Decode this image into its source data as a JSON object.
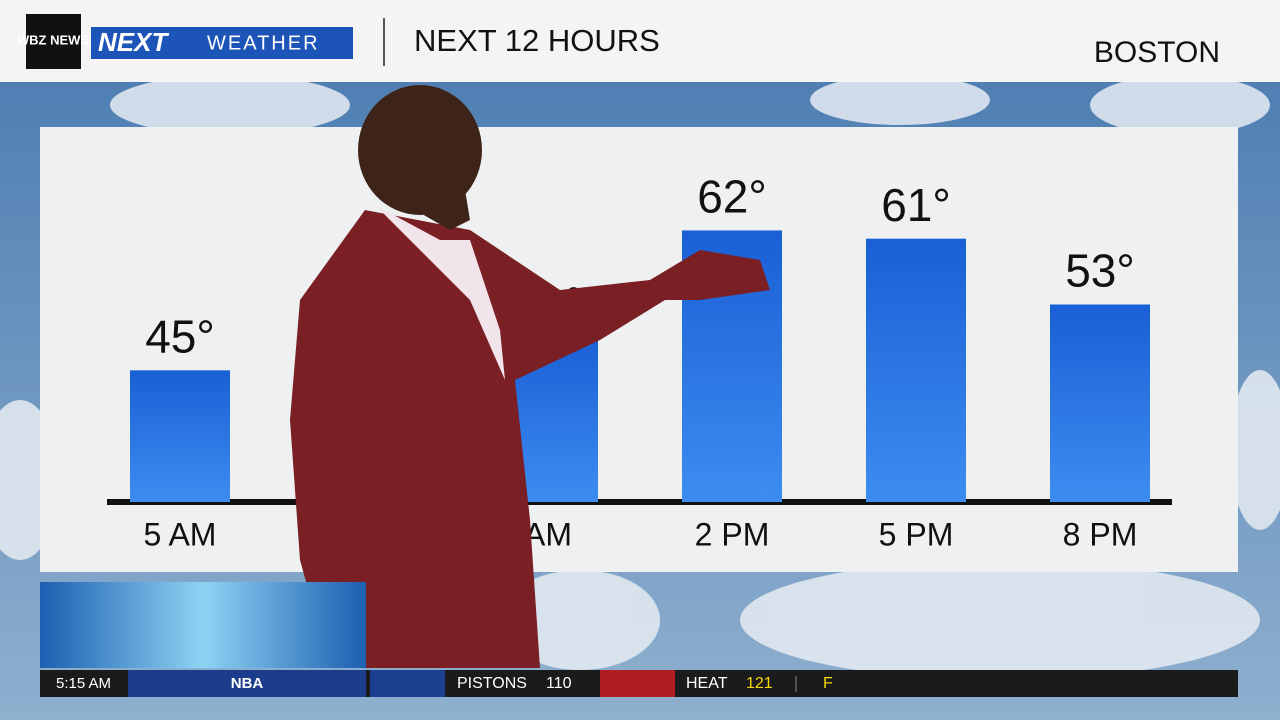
{
  "header": {
    "station": "WBZ NEWS",
    "brand": "NEXT",
    "segment": "WEATHER",
    "location": "BOSTON"
  },
  "chart_data": {
    "type": "bar",
    "title": "NEXT 12 HOURS",
    "categories": [
      "5 AM",
      null,
      "AM",
      "2 PM",
      "5 PM",
      "8 PM"
    ],
    "values": [
      45,
      null,
      49,
      62,
      61,
      53
    ],
    "value_labels": [
      "45°",
      null,
      "49°",
      "62°",
      "61°",
      "53°"
    ],
    "color": "#1f6fe0",
    "ylim": [
      29,
      64
    ]
  },
  "ticker": {
    "time": "5:15 AM",
    "league": "NBA",
    "team1": "PISTONS",
    "score1": "110",
    "team2": "HEAT",
    "score2": "121",
    "status": "F"
  }
}
